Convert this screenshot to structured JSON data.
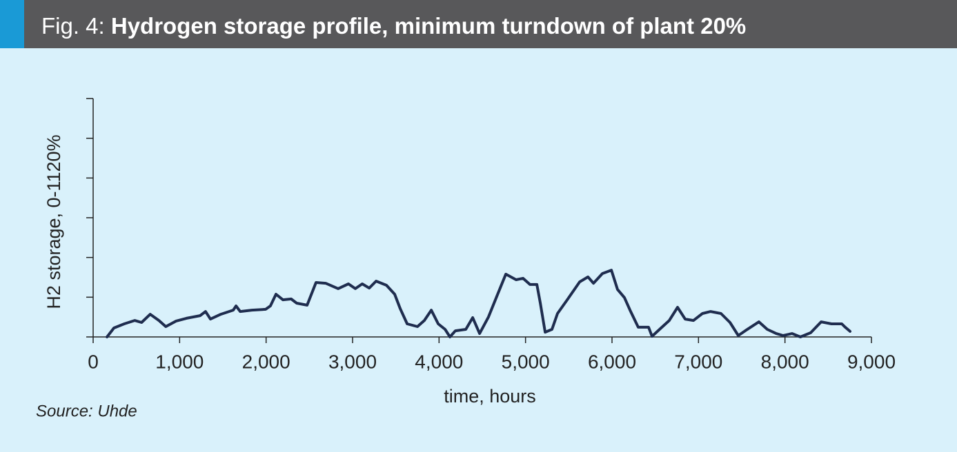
{
  "chart_data": {
    "type": "line",
    "figure_label": "Fig. 4:",
    "title": "Hydrogen storage profile, minimum turndown of plant 20%",
    "x_label": "time, hours",
    "y_label": "H2 storage, 0-1120%",
    "source": "Source: Uhde",
    "x": [
      160,
      240,
      360,
      480,
      560,
      660,
      760,
      840,
      960,
      1080,
      1237,
      1300,
      1356,
      1476,
      1620,
      1652,
      1700,
      1835,
      1995,
      2050,
      2114,
      2194,
      2290,
      2354,
      2474,
      2577,
      2689,
      2833,
      2952,
      3032,
      3112,
      3192,
      3272,
      3392,
      3487,
      3551,
      3631,
      3750,
      3830,
      3910,
      3990,
      4070,
      4126,
      4189,
      4309,
      4389,
      4469,
      4572,
      4668,
      4772,
      4891,
      4971,
      5051,
      5131,
      5171,
      5227,
      5306,
      5370,
      5482,
      5626,
      5722,
      5785,
      5889,
      5993,
      6064,
      6144,
      6208,
      6303,
      6423,
      6463,
      6567,
      6662,
      6758,
      6846,
      6942,
      7046,
      7140,
      7260,
      7364,
      7460,
      7540,
      7699,
      7795,
      7899,
      7979,
      8083,
      8178,
      8298,
      8418,
      8537,
      8657,
      8697,
      8753
    ],
    "series": [
      {
        "color": "#1f2d4f",
        "values": [
          0,
          45,
          66,
          83,
          73,
          114,
          83,
          52,
          80,
          94,
          107,
          128,
          90,
          114,
          135,
          156,
          128,
          135,
          139,
          156,
          215,
          187,
          191,
          170,
          160,
          274,
          270,
          243,
          267,
          243,
          267,
          246,
          281,
          260,
          215,
          142,
          66,
          52,
          83,
          135,
          66,
          38,
          0,
          31,
          38,
          97,
          17,
          101,
          205,
          316,
          288,
          295,
          264,
          264,
          170,
          24,
          38,
          118,
          187,
          277,
          302,
          270,
          319,
          336,
          239,
          198,
          135,
          49,
          49,
          3,
          45,
          83,
          149,
          90,
          83,
          118,
          128,
          118,
          73,
          7,
          31,
          76,
          38,
          17,
          7,
          17,
          0,
          21,
          76,
          66,
          66,
          49,
          28
        ]
      }
    ],
    "xlim": [
      0,
      9000
    ],
    "xticks": [
      0,
      {
        "value": 1000,
        "label": "1,000"
      },
      {
        "value": 2000,
        "label": "2,000"
      },
      {
        "value": 3000,
        "label": "3,000"
      },
      {
        "value": 4000,
        "label": "4,000"
      },
      {
        "value": 5000,
        "label": "5,000"
      },
      {
        "value": 6000,
        "label": "6,000"
      },
      {
        "value": 7000,
        "label": "7,000"
      },
      {
        "value": 8000,
        "label": "8,000"
      },
      {
        "value": 9000,
        "label": "9,000"
      }
    ],
    "ylim": [
      0,
      1200
    ],
    "yticks": [
      0,
      200,
      400,
      600,
      800,
      1000,
      1200
    ]
  }
}
